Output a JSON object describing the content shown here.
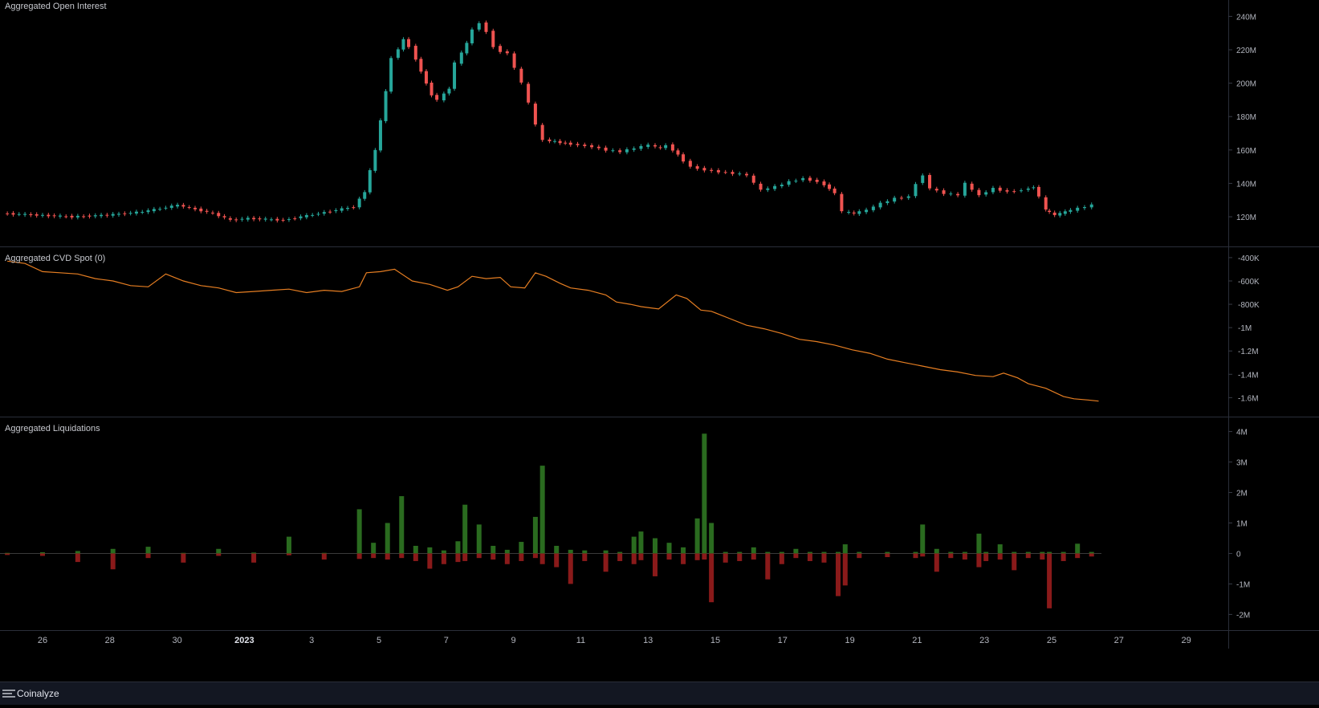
{
  "app": {
    "brand": "Coinalyze"
  },
  "colors": {
    "bullish": "#26a69a",
    "bearish": "#ef5350",
    "liq_long": "#2a6b1f",
    "liq_short": "#8a1a1a",
    "cvd_line": "#e67e22",
    "axis_text": "#b2b5be",
    "grid": "#1e222d"
  },
  "chart_data": [
    {
      "type": "candlestick",
      "title": "Aggregated Open Interest",
      "x_ticks": [
        "26",
        "28",
        "30",
        "2023",
        "3",
        "5",
        "7",
        "9",
        "11",
        "13",
        "15",
        "17",
        "19",
        "21",
        "23",
        "25",
        "27",
        "29"
      ],
      "y_ticks": [
        "240M",
        "220M",
        "200M",
        "180M",
        "160M",
        "140M",
        "120M"
      ],
      "ylim": [
        108,
        245
      ],
      "unit": "M",
      "ohlc_points": [
        [
          25,
          122
        ],
        [
          26,
          121
        ],
        [
          27,
          120
        ],
        [
          28,
          121
        ],
        [
          29,
          123
        ],
        [
          30,
          127
        ],
        [
          31,
          122
        ],
        [
          31.5,
          118
        ],
        [
          32,
          119
        ],
        [
          33,
          118
        ],
        [
          34,
          122
        ],
        [
          35,
          126
        ],
        [
          35.3,
          135
        ],
        [
          35.6,
          160
        ],
        [
          35.9,
          195
        ],
        [
          36.1,
          215
        ],
        [
          36.4,
          226
        ],
        [
          36.6,
          222
        ],
        [
          36.9,
          207
        ],
        [
          37.2,
          193
        ],
        [
          37.4,
          190
        ],
        [
          37.7,
          197
        ],
        [
          37.9,
          212
        ],
        [
          38.2,
          224
        ],
        [
          38.4,
          232
        ],
        [
          38.6,
          236
        ],
        [
          38.8,
          231
        ],
        [
          39,
          222
        ],
        [
          39.2,
          219
        ],
        [
          39.4,
          218
        ],
        [
          39.6,
          209
        ],
        [
          39.8,
          200
        ],
        [
          40,
          188
        ],
        [
          40.2,
          175
        ],
        [
          40.4,
          166
        ],
        [
          40.7,
          165
        ],
        [
          41,
          164
        ],
        [
          41.4,
          163
        ],
        [
          41.8,
          162
        ],
        [
          42.2,
          160
        ],
        [
          42.6,
          159
        ],
        [
          43,
          161
        ],
        [
          43.4,
          163
        ],
        [
          43.7,
          161
        ],
        [
          43.9,
          163
        ],
        [
          44.2,
          157
        ],
        [
          44.6,
          150
        ],
        [
          45,
          148
        ],
        [
          45.4,
          147
        ],
        [
          45.8,
          146
        ],
        [
          46.2,
          145
        ],
        [
          46.4,
          140
        ],
        [
          46.6,
          136
        ],
        [
          47,
          138
        ],
        [
          47.4,
          141
        ],
        [
          47.8,
          143
        ],
        [
          48.2,
          141
        ],
        [
          48.5,
          137
        ],
        [
          48.7,
          134
        ],
        [
          48.9,
          123
        ],
        [
          49.2,
          122
        ],
        [
          49.6,
          124
        ],
        [
          50,
          128
        ],
        [
          50.4,
          131
        ],
        [
          50.8,
          132
        ],
        [
          51,
          140
        ],
        [
          51.2,
          145
        ],
        [
          51.4,
          137
        ],
        [
          51.8,
          134
        ],
        [
          52.2,
          133
        ],
        [
          52.4,
          140
        ],
        [
          52.6,
          136
        ],
        [
          52.8,
          133
        ],
        [
          53.2,
          137
        ],
        [
          53.6,
          135
        ],
        [
          54,
          136
        ],
        [
          54.3,
          138
        ],
        [
          54.5,
          132
        ],
        [
          54.6,
          124
        ],
        [
          54.9,
          121
        ],
        [
          55.2,
          123
        ],
        [
          55.6,
          125
        ],
        [
          56,
          127
        ]
      ]
    },
    {
      "type": "line",
      "title": "Aggregated CVD Spot (0)",
      "y_ticks": [
        "-400K",
        "-600K",
        "-800K",
        "-1M",
        "-1.2M",
        "-1.4M",
        "-1.6M"
      ],
      "ylim": [
        -1.68,
        -0.38
      ],
      "unit": "M",
      "x": [
        25,
        25.5,
        26,
        26.5,
        27,
        27.5,
        28,
        28.5,
        29,
        29.5,
        30,
        30.5,
        31,
        31.5,
        32,
        32.5,
        33,
        33.5,
        34,
        34.5,
        35,
        35.2,
        35.6,
        36,
        36.5,
        37,
        37.5,
        37.8,
        38.2,
        38.6,
        39,
        39.3,
        39.7,
        40,
        40.3,
        40.7,
        41,
        41.5,
        42,
        42.3,
        42.7,
        43,
        43.5,
        44,
        44.3,
        44.7,
        45,
        45.5,
        46,
        46.5,
        47,
        47.5,
        48,
        48.5,
        49,
        49.5,
        50,
        50.5,
        51,
        51.5,
        52,
        52.5,
        53,
        53.3,
        53.7,
        54,
        54.5,
        55,
        55.3,
        55.7,
        56
      ],
      "y": [
        -0.43,
        -0.45,
        -0.52,
        -0.53,
        -0.54,
        -0.58,
        -0.6,
        -0.64,
        -0.65,
        -0.54,
        -0.6,
        -0.64,
        -0.66,
        -0.7,
        -0.69,
        -0.68,
        -0.67,
        -0.7,
        -0.68,
        -0.69,
        -0.65,
        -0.53,
        -0.52,
        -0.5,
        -0.6,
        -0.63,
        -0.68,
        -0.65,
        -0.56,
        -0.58,
        -0.57,
        -0.65,
        -0.66,
        -0.53,
        -0.56,
        -0.62,
        -0.66,
        -0.68,
        -0.72,
        -0.78,
        -0.8,
        -0.82,
        -0.84,
        -0.72,
        -0.75,
        -0.85,
        -0.86,
        -0.92,
        -0.98,
        -1.01,
        -1.05,
        -1.1,
        -1.12,
        -1.15,
        -1.19,
        -1.22,
        -1.27,
        -1.3,
        -1.33,
        -1.36,
        -1.38,
        -1.41,
        -1.42,
        -1.39,
        -1.43,
        -1.48,
        -1.52,
        -1.59,
        -1.61,
        -1.62,
        -1.63
      ]
    },
    {
      "type": "bar",
      "title": "Aggregated Liquidations",
      "y_ticks": [
        "4M",
        "3M",
        "2M",
        "1M",
        "0",
        "-1M",
        "-2M"
      ],
      "ylim": [
        -2.2,
        4.2
      ],
      "unit": "M",
      "bars": [
        [
          25,
          0.02,
          -0.05
        ],
        [
          26,
          0.04,
          -0.08
        ],
        [
          27,
          0.08,
          -0.28
        ],
        [
          28,
          0.15,
          -0.52
        ],
        [
          29,
          0.22,
          -0.15
        ],
        [
          30,
          0.02,
          -0.3
        ],
        [
          31,
          0.15,
          -0.08
        ],
        [
          32,
          0.03,
          -0.3
        ],
        [
          33,
          0.55,
          -0.06
        ],
        [
          34,
          0.02,
          -0.2
        ],
        [
          35,
          1.45,
          -0.18
        ],
        [
          35.4,
          0.35,
          -0.15
        ],
        [
          35.8,
          1.0,
          -0.2
        ],
        [
          36.2,
          1.88,
          -0.15
        ],
        [
          36.6,
          0.25,
          -0.25
        ],
        [
          37,
          0.2,
          -0.5
        ],
        [
          37.4,
          0.1,
          -0.35
        ],
        [
          37.8,
          0.4,
          -0.28
        ],
        [
          38,
          1.6,
          -0.25
        ],
        [
          38.4,
          0.95,
          -0.15
        ],
        [
          38.8,
          0.25,
          -0.2
        ],
        [
          39.2,
          0.12,
          -0.35
        ],
        [
          39.6,
          0.38,
          -0.25
        ],
        [
          40,
          1.2,
          -0.15
        ],
        [
          40.2,
          2.88,
          -0.35
        ],
        [
          40.6,
          0.25,
          -0.45
        ],
        [
          41,
          0.12,
          -1.0
        ],
        [
          41.4,
          0.1,
          -0.25
        ],
        [
          42,
          0.1,
          -0.6
        ],
        [
          42.4,
          0.05,
          -0.25
        ],
        [
          42.8,
          0.55,
          -0.35
        ],
        [
          43,
          0.72,
          -0.22
        ],
        [
          43.4,
          0.5,
          -0.75
        ],
        [
          43.8,
          0.35,
          -0.2
        ],
        [
          44.2,
          0.2,
          -0.35
        ],
        [
          44.6,
          1.15,
          -0.22
        ],
        [
          44.8,
          3.93,
          -0.2
        ],
        [
          45,
          1.0,
          -1.6
        ],
        [
          45.4,
          0.05,
          -0.3
        ],
        [
          45.8,
          0.05,
          -0.25
        ],
        [
          46.2,
          0.2,
          -0.2
        ],
        [
          46.6,
          0.05,
          -0.85
        ],
        [
          47,
          0.05,
          -0.35
        ],
        [
          47.4,
          0.15,
          -0.15
        ],
        [
          47.8,
          0.05,
          -0.25
        ],
        [
          48.2,
          0.05,
          -0.3
        ],
        [
          48.6,
          0.05,
          -1.4
        ],
        [
          48.8,
          0.3,
          -1.05
        ],
        [
          49.2,
          0.05,
          -0.15
        ],
        [
          50,
          0.05,
          -0.12
        ],
        [
          50.8,
          0.05,
          -0.15
        ],
        [
          51,
          0.95,
          -0.1
        ],
        [
          51.4,
          0.15,
          -0.6
        ],
        [
          51.8,
          0.05,
          -0.15
        ],
        [
          52.2,
          0.05,
          -0.2
        ],
        [
          52.6,
          0.65,
          -0.45
        ],
        [
          52.8,
          0.05,
          -0.25
        ],
        [
          53.2,
          0.3,
          -0.2
        ],
        [
          53.6,
          0.05,
          -0.55
        ],
        [
          54,
          0.05,
          -0.15
        ],
        [
          54.4,
          0.05,
          -0.2
        ],
        [
          54.6,
          0.05,
          -1.8
        ],
        [
          55,
          0.05,
          -0.25
        ],
        [
          55.4,
          0.32,
          -0.15
        ],
        [
          55.8,
          0.05,
          -0.1
        ]
      ]
    }
  ]
}
